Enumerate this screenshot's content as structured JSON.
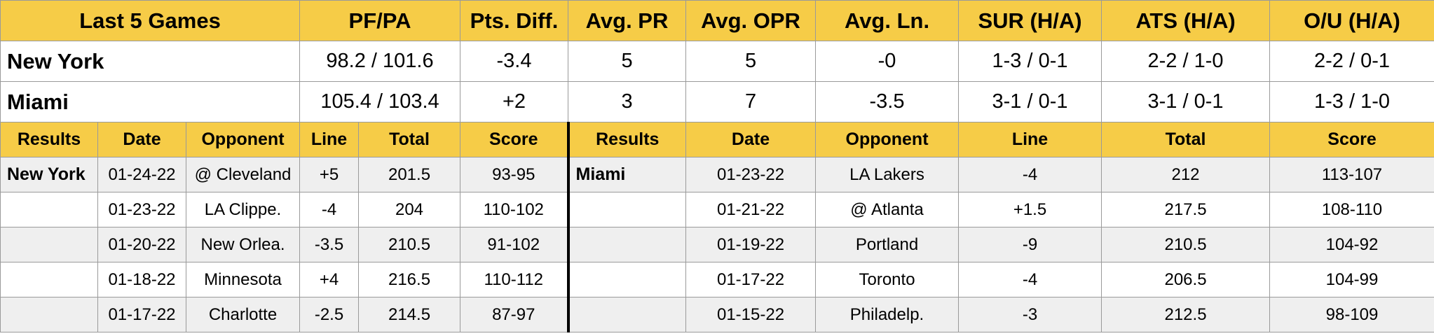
{
  "summary": {
    "headers": [
      "Last 5 Games",
      "PF/PA",
      "Pts. Diff.",
      "Avg. PR",
      "Avg. OPR",
      "Avg. Ln.",
      "SUR (H/A)",
      "ATS (H/A)",
      "O/U (H/A)"
    ],
    "rows": [
      {
        "team": "New York",
        "pfpa": "98.2 / 101.6",
        "diff": "-3.4",
        "pr": "5",
        "opr": "5",
        "ln": "-0",
        "sur": "1-3 / 0-1",
        "ats": "2-2 / 1-0",
        "ou": "2-2 / 0-1"
      },
      {
        "team": "Miami",
        "pfpa": "105.4 / 103.4",
        "diff": "+2",
        "pr": "3",
        "opr": "7",
        "ln": "-3.5",
        "sur": "3-1 / 0-1",
        "ats": "3-1 / 0-1",
        "ou": "1-3 / 1-0"
      }
    ]
  },
  "games": {
    "headers": [
      "Results",
      "Date",
      "Opponent",
      "Line",
      "Total",
      "Score",
      "Results",
      "Date",
      "Opponent",
      "Line",
      "Total",
      "Score"
    ],
    "left_team": "New York",
    "right_team": "Miami",
    "rows": [
      {
        "l_date": "01-24-22",
        "l_opp": "@ Cleveland",
        "l_line": "+5",
        "l_total": "201.5",
        "l_score": "93-95",
        "r_date": "01-23-22",
        "r_opp": "LA Lakers",
        "r_line": "-4",
        "r_total": "212",
        "r_score": "113-107"
      },
      {
        "l_date": "01-23-22",
        "l_opp": "LA Clippe.",
        "l_line": "-4",
        "l_total": "204",
        "l_score": "110-102",
        "r_date": "01-21-22",
        "r_opp": "@ Atlanta",
        "r_line": "+1.5",
        "r_total": "217.5",
        "r_score": "108-110"
      },
      {
        "l_date": "01-20-22",
        "l_opp": "New Orlea.",
        "l_line": "-3.5",
        "l_total": "210.5",
        "l_score": "91-102",
        "r_date": "01-19-22",
        "r_opp": "Portland",
        "r_line": "-9",
        "r_total": "210.5",
        "r_score": "104-92"
      },
      {
        "l_date": "01-18-22",
        "l_opp": "Minnesota",
        "l_line": "+4",
        "l_total": "216.5",
        "l_score": "110-112",
        "r_date": "01-17-22",
        "r_opp": "Toronto",
        "r_line": "-4",
        "r_total": "206.5",
        "r_score": "104-99"
      },
      {
        "l_date": "01-17-22",
        "l_opp": "Charlotte",
        "l_line": "-2.5",
        "l_total": "214.5",
        "l_score": "87-97",
        "r_date": "01-15-22",
        "r_opp": "Philadelp.",
        "r_line": "-3",
        "r_total": "212.5",
        "r_score": "98-109"
      }
    ]
  },
  "colors": {
    "header_bg": "#f6cc47",
    "shade_bg": "#efefef",
    "border": "#9a9a9a"
  }
}
